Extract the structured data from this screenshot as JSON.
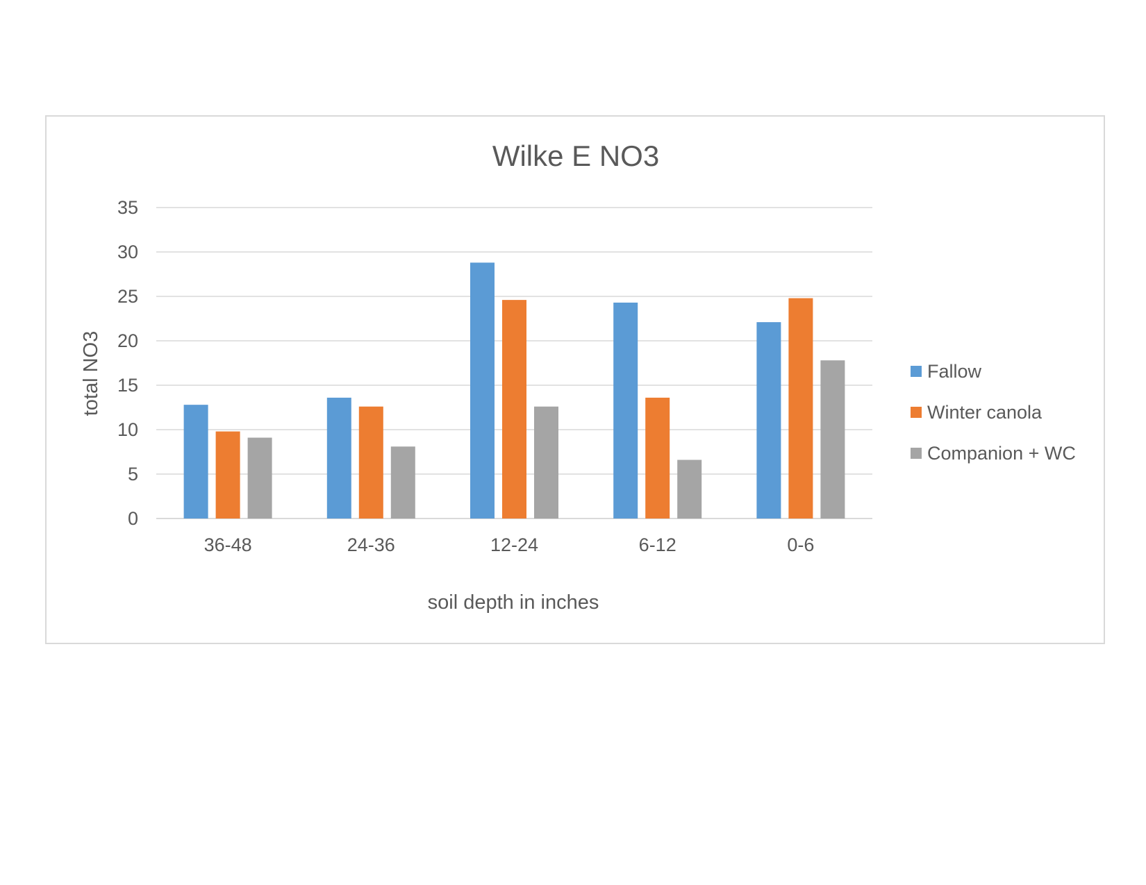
{
  "chart_data": {
    "type": "bar",
    "title": "Wilke E NO3",
    "xlabel": "soil depth in inches",
    "ylabel": "total NO3",
    "categories": [
      "36-48",
      "24-36",
      "12-24",
      "6-12",
      "0-6"
    ],
    "series": [
      {
        "name": "Fallow",
        "color": "#5b9bd5",
        "values": [
          12.8,
          13.6,
          28.8,
          24.3,
          22.1
        ]
      },
      {
        "name": "Winter canola",
        "color": "#ed7d31",
        "values": [
          9.8,
          12.6,
          24.6,
          13.6,
          24.8
        ]
      },
      {
        "name": "Companion + WC",
        "color": "#a5a5a5",
        "values": [
          9.1,
          8.1,
          12.6,
          6.6,
          17.8
        ]
      }
    ],
    "ylim": [
      0,
      35
    ],
    "yticks": [
      0,
      5,
      10,
      15,
      20,
      25,
      30,
      35
    ],
    "grid": true,
    "legend_position": "right"
  }
}
